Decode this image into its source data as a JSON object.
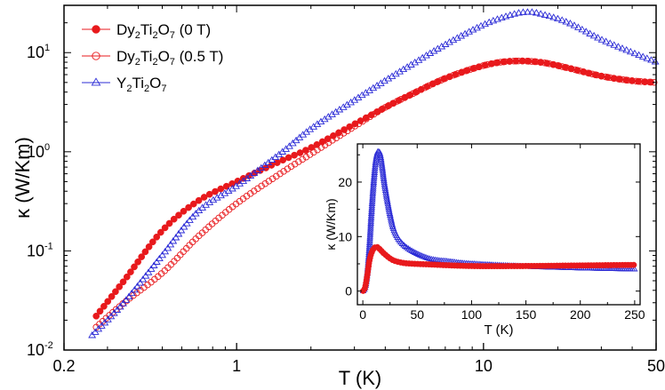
{
  "chart_data": [
    {
      "type": "scatter",
      "xscale": "log",
      "yscale": "log",
      "xlim": [
        0.2,
        50
      ],
      "ylim": [
        0.01,
        30
      ],
      "xlabel": "T (K)",
      "ylabel": "κ (W/Km)",
      "xticks": [
        {
          "value": 0.2,
          "label": "0.2"
        },
        {
          "value": 1,
          "label": "1"
        },
        {
          "value": 10,
          "label": "10"
        },
        {
          "value": 50,
          "label": "50"
        }
      ],
      "yticks": [
        {
          "value": 0.01,
          "base": "10",
          "exp": "-2"
        },
        {
          "value": 0.1,
          "base": "10",
          "exp": "-1"
        },
        {
          "value": 1,
          "base": "10",
          "exp": "0"
        },
        {
          "value": 10,
          "base": "10",
          "exp": "1"
        }
      ],
      "legend_position": "top-left",
      "series": [
        {
          "name": "Dy2Ti2O7 (0 T)",
          "legend": {
            "a": "Dy",
            "b": "2",
            "c": "Ti",
            "d": "2",
            "e": "O",
            "f": "7",
            "g": " (0 T)"
          },
          "color": "#e8191c",
          "marker": "filled-circle",
          "points": [
            [
              0.27,
              0.022
            ],
            [
              0.35,
              0.05
            ],
            [
              0.5,
              0.16
            ],
            [
              0.7,
              0.32
            ],
            [
              1.0,
              0.5
            ],
            [
              1.5,
              0.8
            ],
            [
              2.0,
              1.1
            ],
            [
              3.0,
              1.9
            ],
            [
              4.0,
              2.8
            ],
            [
              5.0,
              3.7
            ],
            [
              7.0,
              5.5
            ],
            [
              10.0,
              7.4
            ],
            [
              13.0,
              8.2
            ],
            [
              17.0,
              8.0
            ],
            [
              22.0,
              7.0
            ],
            [
              30.0,
              5.8
            ],
            [
              40.0,
              5.2
            ],
            [
              50.0,
              5.0
            ]
          ]
        },
        {
          "name": "Dy2Ti2O7 (0.5 T)",
          "legend": {
            "a": "Dy",
            "b": "2",
            "c": "Ti",
            "d": "2",
            "e": "O",
            "f": "7",
            "g": " (0.5 T)"
          },
          "color": "#e8191c",
          "marker": "open-circle",
          "points": [
            [
              0.27,
              0.017
            ],
            [
              0.35,
              0.03
            ],
            [
              0.5,
              0.06
            ],
            [
              0.7,
              0.14
            ],
            [
              1.0,
              0.3
            ],
            [
              1.5,
              0.6
            ],
            [
              2.0,
              0.95
            ],
            [
              3.0,
              1.8
            ],
            [
              4.0,
              2.8
            ],
            [
              5.0,
              3.7
            ],
            [
              7.0,
              5.5
            ],
            [
              10.0,
              7.4
            ],
            [
              13.0,
              8.2
            ],
            [
              17.0,
              8.0
            ],
            [
              22.0,
              7.0
            ],
            [
              30.0,
              5.8
            ],
            [
              40.0,
              5.2
            ],
            [
              50.0,
              5.0
            ]
          ]
        },
        {
          "name": "Y2Ti2O7",
          "legend": {
            "a": "Y",
            "b": "2",
            "c": "Ti",
            "d": "2",
            "e": "O",
            "f": "7",
            "g": ""
          },
          "color": "#2b2bd6",
          "marker": "open-triangle",
          "points": [
            [
              0.26,
              0.014
            ],
            [
              0.35,
              0.03
            ],
            [
              0.5,
              0.09
            ],
            [
              0.7,
              0.25
            ],
            [
              1.0,
              0.45
            ],
            [
              1.5,
              0.95
            ],
            [
              2.0,
              1.7
            ],
            [
              3.0,
              3.3
            ],
            [
              4.0,
              5.2
            ],
            [
              5.0,
              7.3
            ],
            [
              7.0,
              12.0
            ],
            [
              10.0,
              19.0
            ],
            [
              13.0,
              24.0
            ],
            [
              15.0,
              25.5
            ],
            [
              17.0,
              24.5
            ],
            [
              22.0,
              20.0
            ],
            [
              30.0,
              13.5
            ],
            [
              40.0,
              10.0
            ],
            [
              50.0,
              8.0
            ]
          ]
        }
      ]
    },
    {
      "type": "scatter",
      "inset": true,
      "xlim": [
        -5,
        255
      ],
      "ylim": [
        -2.5,
        27
      ],
      "xlabel": "T (K)",
      "ylabel": "κ (W/Km)",
      "xticks": [
        0,
        50,
        100,
        150,
        200,
        250
      ],
      "yticks": [
        0,
        10,
        20
      ],
      "series": [
        {
          "name": "Dy2Ti2O7 (0 T)",
          "color": "#e8191c",
          "marker": "filled-circle",
          "points": [
            [
              0.3,
              0.05
            ],
            [
              2,
              0.6
            ],
            [
              4,
              2.8
            ],
            [
              6,
              5.5
            ],
            [
              8,
              7.0
            ],
            [
              10,
              7.8
            ],
            [
              12,
              8.1
            ],
            [
              14,
              8.0
            ],
            [
              16,
              7.6
            ],
            [
              20,
              6.8
            ],
            [
              25,
              6.0
            ],
            [
              30,
              5.5
            ],
            [
              40,
              5.1
            ],
            [
              60,
              4.9
            ],
            [
              100,
              4.6
            ],
            [
              150,
              4.6
            ],
            [
              200,
              4.7
            ],
            [
              250,
              4.8
            ]
          ]
        },
        {
          "name": "Y2Ti2O7",
          "color": "#2b2bd6",
          "marker": "open-triangle",
          "points": [
            [
              0.3,
              0.01
            ],
            [
              2,
              0.6
            ],
            [
              4,
              3.0
            ],
            [
              6,
              8.0
            ],
            [
              8,
              14.5
            ],
            [
              10,
              20.0
            ],
            [
              12,
              24.0
            ],
            [
              14,
              25.6
            ],
            [
              16,
              25.0
            ],
            [
              18,
              22.5
            ],
            [
              20,
              19.5
            ],
            [
              25,
              14.0
            ],
            [
              30,
              10.5
            ],
            [
              40,
              8.0
            ],
            [
              60,
              6.0
            ],
            [
              80,
              5.4
            ],
            [
              100,
              5.0
            ],
            [
              150,
              4.5
            ],
            [
              200,
              4.2
            ],
            [
              250,
              4.0
            ]
          ]
        }
      ]
    }
  ]
}
